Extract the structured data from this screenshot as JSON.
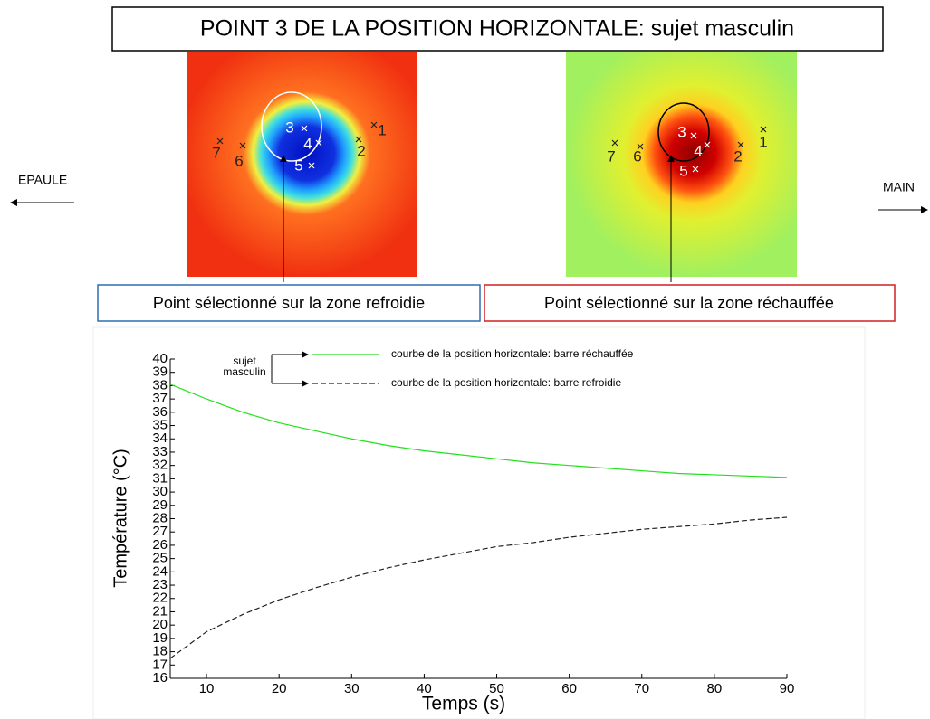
{
  "slide": {
    "title": "POINT 3  DE LA  POSITION  HORIZONTALE: sujet  masculin",
    "left_side": "EPAULE",
    "right_side": "MAIN",
    "left_image": {
      "caption": "Point sélectionné sur la zone refroidie",
      "points": [
        "1",
        "2",
        "3",
        "4",
        "5",
        "6",
        "7"
      ]
    },
    "right_image": {
      "caption": "Point sélectionné sur la zone réchauffée",
      "points": [
        "1",
        "2",
        "3",
        "4",
        "5",
        "6",
        "7"
      ]
    }
  },
  "chart_data": {
    "type": "line",
    "x": [
      5,
      10,
      15,
      20,
      25,
      30,
      35,
      40,
      45,
      50,
      55,
      60,
      65,
      70,
      75,
      80,
      85,
      90
    ],
    "series": [
      {
        "name": "courbe de la position horizontale: barre réchauffée",
        "color": "#22e01c",
        "linestyle": "solid",
        "values": [
          38.1,
          37.0,
          36.0,
          35.2,
          34.6,
          34.0,
          33.5,
          33.1,
          32.8,
          32.5,
          32.2,
          32.0,
          31.8,
          31.6,
          31.4,
          31.3,
          31.2,
          31.1
        ]
      },
      {
        "name": "courbe de la position horizontale: barre refroidie",
        "color": "#222222",
        "linestyle": "dashed",
        "values": [
          17.5,
          19.5,
          20.8,
          21.9,
          22.8,
          23.6,
          24.3,
          24.9,
          25.4,
          25.9,
          26.2,
          26.6,
          26.9,
          27.2,
          27.4,
          27.6,
          27.9,
          28.1
        ]
      }
    ],
    "legend_group": [
      "sujet",
      "masculin"
    ],
    "xlabel": "Temps (s)",
    "ylabel": "Température (°C)",
    "xlim": [
      5,
      90
    ],
    "xticks": [
      10,
      20,
      30,
      40,
      50,
      60,
      70,
      80,
      90
    ],
    "ylim": [
      16,
      40
    ],
    "yticks": [
      16,
      17,
      18,
      19,
      20,
      21,
      22,
      23,
      24,
      25,
      26,
      27,
      28,
      29,
      30,
      31,
      32,
      33,
      34,
      35,
      36,
      37,
      38,
      39,
      40
    ],
    "grid": false
  }
}
